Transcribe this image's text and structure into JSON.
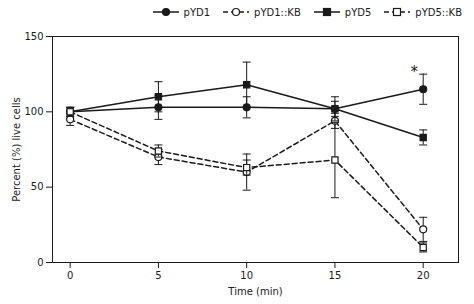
{
  "chart_data": {
    "type": "line",
    "xlabel": "Time (min)",
    "ylabel": "Percent (%) live cells",
    "x": [
      0,
      5,
      10,
      15,
      20
    ],
    "series": [
      {
        "name": "pYD1",
        "color": "#1a1a1a",
        "marker": "circle",
        "line_style": "solid",
        "values": [
          100,
          103,
          103,
          102,
          115
        ],
        "errors": [
          3,
          8,
          7,
          5,
          10
        ]
      },
      {
        "name": "pYD1::KB",
        "color": "#1a1a1a",
        "marker": "circle-open",
        "line_style": "dashed",
        "values": [
          95,
          70,
          60,
          94,
          22
        ],
        "errors": [
          4,
          5,
          12,
          5,
          8
        ]
      },
      {
        "name": "pYD5",
        "color": "#1a1a1a",
        "marker": "square",
        "line_style": "solid",
        "values": [
          100,
          110,
          118,
          102,
          83
        ],
        "errors": [
          3,
          10,
          15,
          8,
          5
        ]
      },
      {
        "name": "pYD5::KB",
        "color": "#1a1a1a",
        "marker": "square-open",
        "line_style": "dashed",
        "values": [
          100,
          74,
          63,
          68,
          10
        ],
        "errors": [
          3,
          4,
          5,
          25,
          3
        ]
      }
    ],
    "annotations": [
      {
        "text": "*",
        "x": 19.5,
        "y": 126
      }
    ],
    "xlim": [
      -1,
      22
    ],
    "xticks": [
      0,
      5,
      10,
      15,
      20
    ],
    "ylim": [
      0,
      150
    ],
    "yticks": [
      0,
      50,
      100,
      150
    ],
    "color": "#1a1a1a",
    "grid": false,
    "legend": "upper right"
  }
}
